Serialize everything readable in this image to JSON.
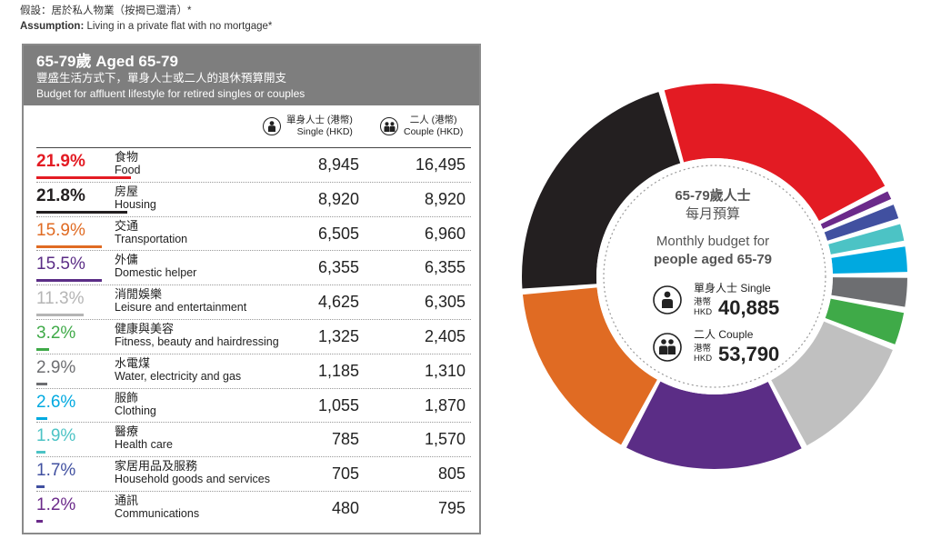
{
  "assumption": {
    "zh": "假設：居於私人物業（按揭已還清）*",
    "en_bold": "Assumption:",
    "en": " Living in a private flat with no mortgage*"
  },
  "panel": {
    "title": "65-79歲 Aged 65-79",
    "subtitle_zh": "豐盛生活方式下，單身人士或二人的退休預算開支",
    "subtitle_en": "Budget for affluent lifestyle for retired singles or couples",
    "single_head_zh": "單身人士 (港幣)",
    "single_head_en": "Single (HKD)",
    "couple_head_zh": "二人 (港幣)",
    "couple_head_en": "Couple (HKD)"
  },
  "center": {
    "zh1": "65-79歲人士",
    "zh2": "每月預算",
    "en1": "Monthly budget for",
    "en2": "people aged 65-79",
    "single_label": "單身人士 Single",
    "couple_label": "二人 Couple",
    "currency_zh": "港幣",
    "currency_en": "HKD",
    "single_total": "40,885",
    "couple_total": "53,790"
  },
  "chart_data": {
    "type": "pie",
    "title": "65-79歲人士 每月預算 Monthly budget for people aged 65-79",
    "categories": [
      "食物 Food",
      "房屋 Housing",
      "交通 Transportation",
      "外傭 Domestic helper",
      "消閒娛樂 Leisure and entertainment",
      "健康與美容 Fitness, beauty and hairdressing",
      "水電煤 Water, electricity and gas",
      "服飾 Clothing",
      "醫療 Health care",
      "家居用品及服務 Household goods and services",
      "通訊 Communications"
    ],
    "values": [
      21.9,
      21.8,
      15.9,
      15.5,
      11.3,
      3.2,
      2.9,
      2.6,
      1.9,
      1.7,
      1.2
    ],
    "colors": [
      "#e31b23",
      "#231f20",
      "#e06b23",
      "#5b2d86",
      "#c0c0c0",
      "#3faa48",
      "#6d6e71",
      "#00a9e0",
      "#4cc3c5",
      "#4150a0",
      "#6b2a8a"
    ]
  },
  "rows": [
    {
      "pct": "21.9%",
      "zh": "食物",
      "en": "Food",
      "single": "8,945",
      "couple": "16,495",
      "color": "#e31b23",
      "bold": true
    },
    {
      "pct": "21.8%",
      "zh": "房屋",
      "en": "Housing",
      "single": "8,920",
      "couple": "8,920",
      "color": "#231f20",
      "bold": true
    },
    {
      "pct": "15.9%",
      "zh": "交通",
      "en": "Transportation",
      "single": "6,505",
      "couple": "6,960",
      "color": "#e06b23",
      "bold": false
    },
    {
      "pct": "15.5%",
      "zh": "外傭",
      "en": "Domestic helper",
      "single": "6,355",
      "couple": "6,355",
      "color": "#5b2d86",
      "bold": false
    },
    {
      "pct": "11.3%",
      "zh": "消閒娛樂",
      "en": "Leisure and entertainment",
      "single": "4,625",
      "couple": "6,305",
      "color": "#b5b5b5",
      "bold": false
    },
    {
      "pct": "3.2%",
      "zh": "健康與美容",
      "en": "Fitness, beauty and hairdressing",
      "single": "1,325",
      "couple": "2,405",
      "color": "#3faa48",
      "bold": false
    },
    {
      "pct": "2.9%",
      "zh": "水電煤",
      "en": "Water, electricity and gas",
      "single": "1,185",
      "couple": "1,310",
      "color": "#6d6e71",
      "bold": false
    },
    {
      "pct": "2.6%",
      "zh": "服飾",
      "en": "Clothing",
      "single": "1,055",
      "couple": "1,870",
      "color": "#00a9e0",
      "bold": false
    },
    {
      "pct": "1.9%",
      "zh": "醫療",
      "en": "Health care",
      "single": "785",
      "couple": "1,570",
      "color": "#4cc3c5",
      "bold": false
    },
    {
      "pct": "1.7%",
      "zh": "家居用品及服務",
      "en": "Household goods and services",
      "single": "705",
      "couple": "805",
      "color": "#4150a0",
      "bold": false
    },
    {
      "pct": "1.2%",
      "zh": "通訊",
      "en": "Communications",
      "single": "480",
      "couple": "795",
      "color": "#6b2a8a",
      "bold": false
    }
  ]
}
